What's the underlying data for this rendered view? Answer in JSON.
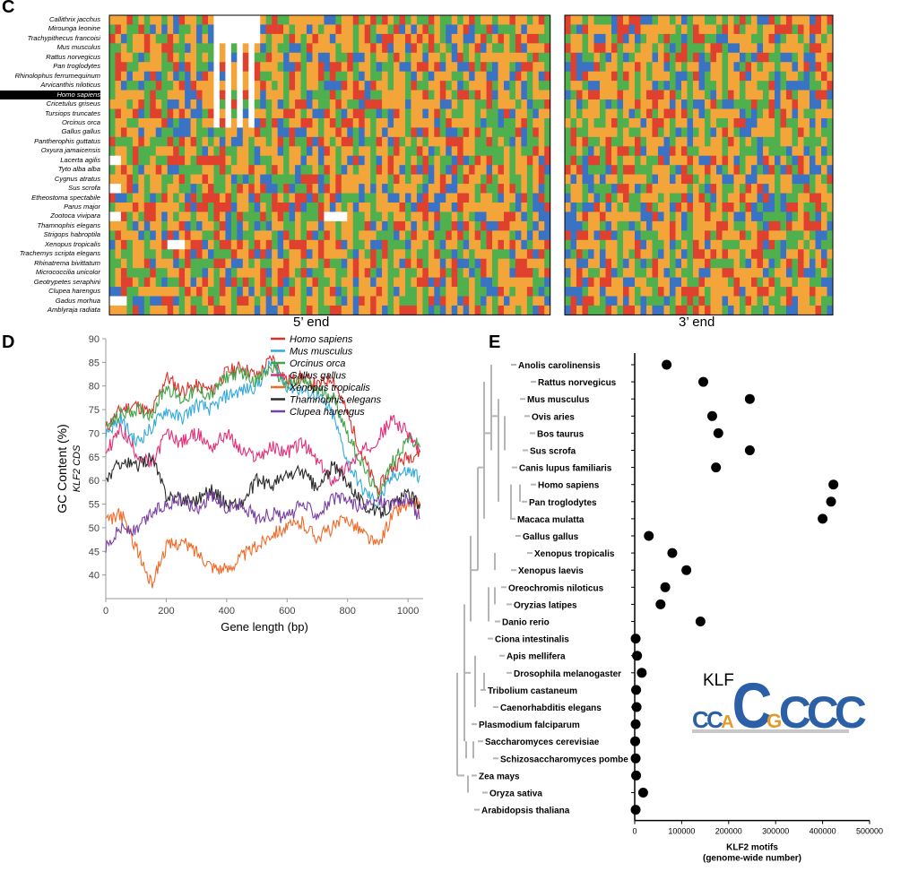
{
  "panels": {
    "c": {
      "letter": "C",
      "label_5": "5’ end",
      "label_3": "3’ end"
    },
    "d": {
      "letter": "D"
    },
    "e": {
      "letter": "E"
    }
  },
  "species_c": [
    "Callithrix jacchus",
    "Mirounga leonine",
    "Trachypithecus francoisi",
    "Mus musculus",
    "Rattus norvegicus",
    "Pan troglodytes",
    "Rhinolophus ferrumequinum",
    "Arvicanthis niloticus",
    "Homo sapiens",
    "Cricetulus griseus",
    "Tursiops truncates",
    "Orcinus orca",
    "Gallus gallus",
    "Pantherophis guttatus",
    "Oxyura jamaicensis",
    "Lacerta agilis",
    "Tyto alba alba",
    "Cygnus atratus",
    "Sus scrofa",
    "Etheostoma spectabile",
    "Parus major",
    "Zootoca vivipara",
    "Thamnophis elegans",
    "Strigops habroptila",
    "Xenopus tropicalis",
    "Trachemys scripta elegans",
    "Rhinatrema bivittatum",
    "Micrococcilia unicolor",
    "Geotrypetes seraphini",
    "Clupea harengus",
    "Gadus morhua",
    "Amblyraja radiata"
  ],
  "highlight_c": "Homo sapiens",
  "alignment_colors": {
    "A": "#e0412f",
    "C": "#f4a53a",
    "G": "#4fb04d",
    "T": "#3a73c4",
    "gap": "#ffffff"
  },
  "chart_data": [
    {
      "type": "line",
      "title": "",
      "xlabel": "Gene length (bp)",
      "ylabel": "GC Content (%)",
      "ylabel2": "KLF2 CDS",
      "xlim": [
        0,
        1050
      ],
      "ylim": [
        35,
        90
      ],
      "xticks": [
        0,
        200,
        400,
        600,
        800,
        1000
      ],
      "yticks": [
        40,
        45,
        50,
        55,
        60,
        65,
        70,
        75,
        80,
        85,
        90
      ],
      "x": [
        0,
        50,
        100,
        150,
        200,
        250,
        300,
        350,
        400,
        450,
        500,
        550,
        600,
        650,
        700,
        750,
        800,
        850,
        900,
        950,
        1000,
        1040
      ],
      "series": [
        {
          "name": "Homo sapiens",
          "color": "#d9322c",
          "values": [
            71,
            75,
            76,
            74,
            82,
            79,
            80,
            79,
            83,
            84,
            82,
            86,
            81,
            82,
            80,
            82,
            74,
            65,
            58,
            63,
            65,
            66
          ]
        },
        {
          "name": "Mus musculus",
          "color": "#34aadc",
          "values": [
            70,
            73,
            68,
            71,
            75,
            73,
            76,
            75,
            78,
            79,
            80,
            85,
            80,
            79,
            78,
            74,
            64,
            58,
            55,
            61,
            62,
            61
          ]
        },
        {
          "name": "Orcinus orca",
          "color": "#41a447",
          "values": [
            71,
            74,
            75,
            74,
            80,
            77,
            79,
            78,
            82,
            83,
            81,
            84,
            80,
            81,
            79,
            78,
            70,
            63,
            57,
            64,
            69,
            67
          ]
        },
        {
          "name": "Gallus gallus",
          "color": "#e0307a",
          "values": [
            66,
            71,
            66,
            63,
            70,
            68,
            70,
            67,
            70,
            66,
            65,
            67,
            66,
            68,
            64,
            60,
            63,
            66,
            69,
            73,
            70,
            66
          ]
        },
        {
          "name": "Xenopus tropicalis",
          "color": "#f06a29",
          "values": [
            51,
            53,
            46,
            38,
            46,
            47,
            45,
            42,
            41,
            44,
            46,
            49,
            50,
            51,
            48,
            50,
            52,
            49,
            46,
            53,
            55,
            55
          ]
        },
        {
          "name": "Thamnophis elegans",
          "color": "#2b2b2b",
          "values": [
            60,
            64,
            63,
            65,
            57,
            56,
            56,
            58,
            55,
            55,
            60,
            59,
            61,
            62,
            58,
            63,
            60,
            55,
            53,
            55,
            57,
            55
          ]
        },
        {
          "name": "Clupea harengus",
          "color": "#7a3fa3",
          "values": [
            46,
            50,
            49,
            53,
            55,
            56,
            54,
            57,
            54,
            55,
            52,
            53,
            52,
            55,
            53,
            56,
            56,
            54,
            56,
            55,
            56,
            52
          ]
        }
      ],
      "legend": "top-right"
    },
    {
      "type": "scatter",
      "title": "",
      "xlabel": "KLF2 motifs",
      "xlabel2": "(genome-wide number)",
      "ylabel": "",
      "xlim": [
        0,
        500000
      ],
      "xticks": [
        0,
        100000,
        200000,
        300000,
        400000,
        500000
      ],
      "categories": [
        "Anolis carolinensis",
        "Rattus norvegicus",
        "Mus musculus",
        "Ovis aries",
        "Bos taurus",
        "Sus scrofa",
        "Canis lupus familiaris",
        "Homo sapiens",
        "Pan troglodytes",
        "Macaca mulatta",
        "Gallus gallus",
        "Xenopus tropicalis",
        "Xenopus laevis",
        "Oreochromis niloticus",
        "Oryzias latipes",
        "Danio rerio",
        "Ciona intestinalis",
        "Apis mellifera",
        "Drosophila melanogaster",
        "Tribolium castaneum",
        "Caenorhabditis elegans",
        "Plasmodium falciparum",
        "Saccharomyces cerevisiae",
        "Schizosaccharomyces pombe",
        "Zea mays",
        "Oryza sativa",
        "Arabidopsis thaliana"
      ],
      "values": [
        68000,
        146000,
        245000,
        165000,
        178000,
        245000,
        173000,
        423000,
        418000,
        400000,
        30000,
        80000,
        110000,
        65000,
        55000,
        140000,
        2000,
        5000,
        15000,
        3000,
        4000,
        2000,
        1000,
        2000,
        3000,
        18000,
        2000
      ],
      "motif_label": "KLF",
      "logo_letters": [
        "C",
        "C",
        "A",
        "C",
        "G",
        "C",
        "C",
        "C"
      ]
    }
  ]
}
